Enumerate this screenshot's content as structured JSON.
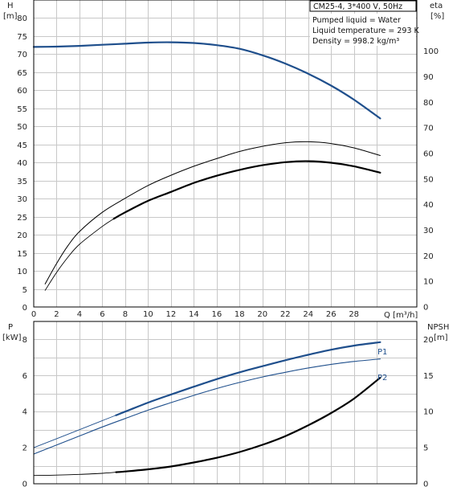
{
  "info": {
    "title": "CM25-4, 3*400 V, 50Hz",
    "lines": [
      "Pumped liquid = Water",
      "Liquid temperature = 293 K",
      "Density = 998.2 kg/m³"
    ]
  },
  "axes": {
    "top_left_label": "H",
    "top_left_unit": "[m]",
    "top_right_label": "eta",
    "top_right_unit": "[%]",
    "x_label": "Q [m³/h]",
    "bottom_left_label": "P",
    "bottom_left_unit": "[kW]",
    "bottom_right_label": "NPSH",
    "bottom_right_unit": "[m]"
  },
  "colors": {
    "blue": "#1f4f8c",
    "black": "#000000",
    "grid": "#c8c8c8"
  },
  "chart_data": [
    {
      "type": "line",
      "panel": "top",
      "grid": true,
      "xlim": [
        0,
        33.5
      ],
      "x_ticks": [
        0,
        2,
        4,
        6,
        8,
        10,
        12,
        14,
        16,
        18,
        20,
        22,
        24,
        26,
        28
      ],
      "y_left_lim": [
        0,
        85
      ],
      "y_left_ticks": [
        0,
        5,
        10,
        15,
        20,
        25,
        30,
        35,
        40,
        45,
        50,
        55,
        60,
        65,
        70,
        75,
        80
      ],
      "y_right_lim": [
        0,
        120
      ],
      "y_right_ticks": [
        0,
        10,
        20,
        30,
        40,
        50,
        60,
        70,
        80,
        90,
        100
      ],
      "series": [
        {
          "axis": "left",
          "color": "#1f4f8c",
          "width": 2.2,
          "x": [
            0,
            2,
            4,
            6,
            8,
            10,
            12,
            14,
            16,
            18,
            20,
            22,
            24,
            26,
            28,
            30.3
          ],
          "y": [
            72,
            72.1,
            72.3,
            72.6,
            72.9,
            73.2,
            73.3,
            73.1,
            72.5,
            71.5,
            69.7,
            67.4,
            64.6,
            61.3,
            57.4,
            52.2
          ]
        },
        {
          "axis": "right",
          "color": "#000000",
          "width": 1.0,
          "x": [
            1,
            2,
            3,
            4,
            6,
            8,
            10,
            12,
            14,
            16,
            18,
            20,
            22,
            24,
            26,
            28,
            30.3
          ],
          "y": [
            9,
            17,
            24,
            29.5,
            37,
            42.5,
            47.5,
            51.5,
            55,
            58,
            60.8,
            62.8,
            64.2,
            64.6,
            63.9,
            62.2,
            59.2
          ]
        },
        {
          "axis": "right",
          "color": "#000000",
          "width": 0.9,
          "x": [
            1,
            2,
            3,
            4,
            6,
            7
          ],
          "y": [
            6.5,
            13.5,
            19.5,
            24.5,
            31.5,
            34.5
          ]
        },
        {
          "axis": "right",
          "color": "#000000",
          "width": 2.2,
          "x": [
            7,
            8,
            10,
            12,
            14,
            16,
            18,
            20,
            22,
            24,
            26,
            28,
            30.3
          ],
          "y": [
            34.5,
            37,
            41.5,
            45,
            48.5,
            51.3,
            53.6,
            55.4,
            56.6,
            57,
            56.4,
            55,
            52.5
          ]
        }
      ]
    },
    {
      "type": "line",
      "panel": "bottom",
      "grid": true,
      "xlim": [
        0,
        33.5
      ],
      "y_left_lim": [
        0,
        9
      ],
      "y_left_ticks": [
        0,
        2,
        4,
        6,
        8
      ],
      "y_right_lim": [
        0,
        22.5
      ],
      "y_right_ticks": [
        0,
        5,
        10,
        15,
        20
      ],
      "series": [
        {
          "name": "P1",
          "axis": "left",
          "color": "#1f4f8c",
          "width": 0.9,
          "x": [
            0,
            2,
            4,
            6,
            7.2
          ],
          "y": [
            2.0,
            2.5,
            3.0,
            3.5,
            3.8
          ]
        },
        {
          "name": "P1",
          "axis": "left",
          "color": "#1f4f8c",
          "width": 2.2,
          "x": [
            7.2,
            8,
            10,
            12,
            14,
            16,
            18,
            20,
            22,
            24,
            26,
            28,
            30.3
          ],
          "y": [
            3.8,
            4.0,
            4.5,
            4.95,
            5.38,
            5.8,
            6.18,
            6.52,
            6.85,
            7.15,
            7.43,
            7.66,
            7.85
          ]
        },
        {
          "name": "P2",
          "axis": "left",
          "color": "#1f4f8c",
          "width": 1.1,
          "x": [
            0,
            2,
            4,
            6,
            8,
            10,
            12,
            14,
            16,
            18,
            20,
            22,
            24,
            26,
            28,
            30.3
          ],
          "y": [
            1.65,
            2.15,
            2.65,
            3.15,
            3.62,
            4.08,
            4.5,
            4.9,
            5.28,
            5.62,
            5.92,
            6.18,
            6.42,
            6.62,
            6.78,
            6.92
          ]
        },
        {
          "axis": "right",
          "color": "#000000",
          "width": 0.9,
          "x": [
            0,
            2,
            4,
            6,
            7.2
          ],
          "y": [
            1.15,
            1.2,
            1.3,
            1.45,
            1.6
          ]
        },
        {
          "axis": "right",
          "color": "#000000",
          "width": 2.2,
          "x": [
            7.2,
            8,
            10,
            12,
            14,
            16,
            18,
            20,
            22,
            24,
            26,
            28,
            30.3
          ],
          "y": [
            1.6,
            1.7,
            2.0,
            2.4,
            2.95,
            3.6,
            4.4,
            5.4,
            6.6,
            8.1,
            9.8,
            11.8,
            14.7
          ]
        }
      ]
    }
  ]
}
